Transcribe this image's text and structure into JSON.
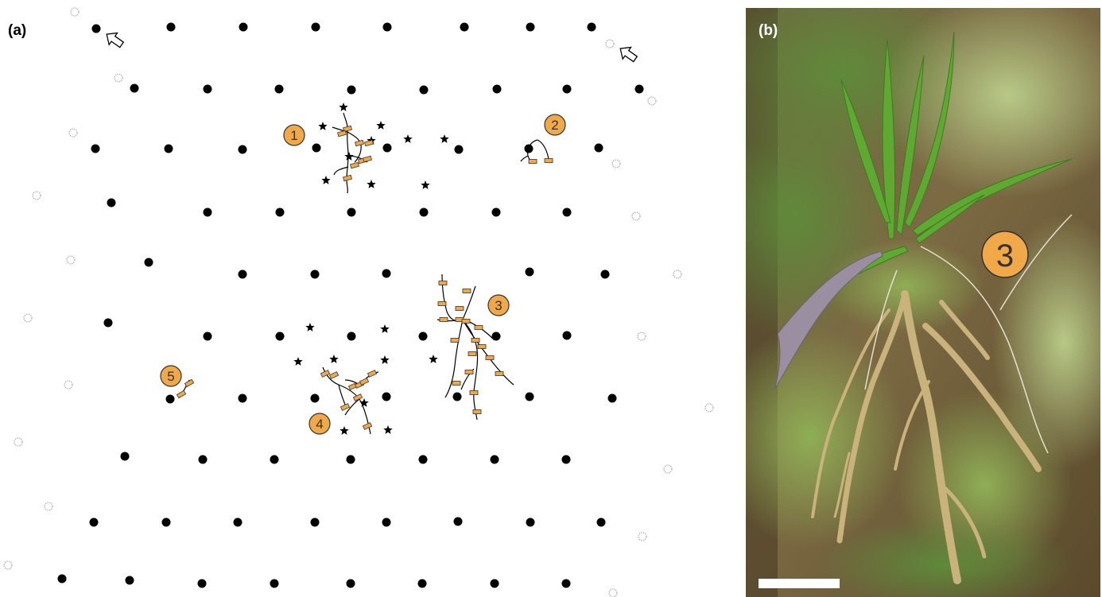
{
  "panels": {
    "a": {
      "label": "(a)"
    },
    "b": {
      "label": "(b)"
    }
  },
  "colors": {
    "marker_fill": "#f0a848",
    "marker_stroke": "#333333",
    "dot": "#000000",
    "faded_dot": "#bdbdbd",
    "scale_bar": "#ffffff"
  },
  "legend_symbols": [
    "filled-dot",
    "faded-dot",
    "star",
    "arrow",
    "root-with-tags"
  ],
  "markers": [
    {
      "id": 1,
      "label": "1"
    },
    {
      "id": 2,
      "label": "2"
    },
    {
      "id": 3,
      "label": "3"
    },
    {
      "id": 4,
      "label": "4"
    },
    {
      "id": 5,
      "label": "5"
    }
  ],
  "photo_marker": {
    "label": "3"
  }
}
